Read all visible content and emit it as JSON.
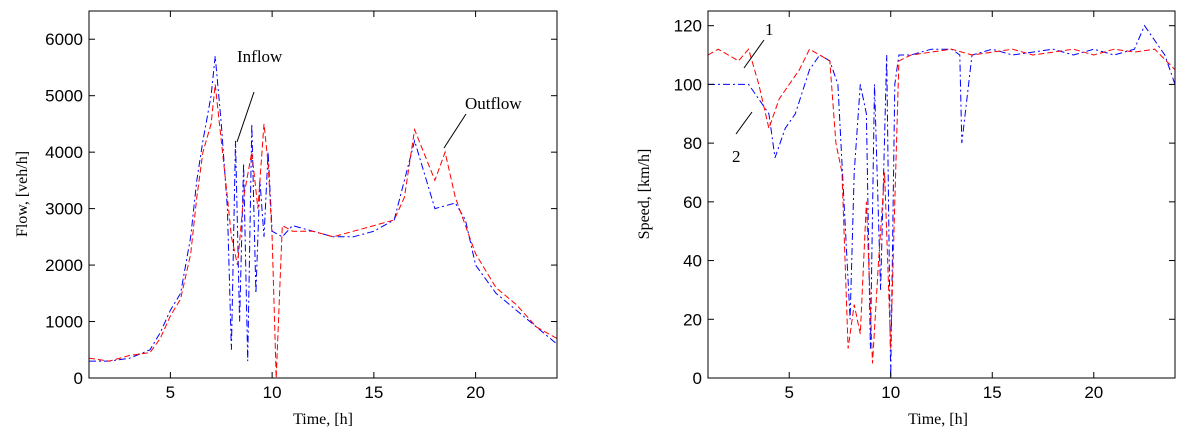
{
  "chart_data": [
    {
      "type": "line",
      "xlabel": "Time, [h]",
      "ylabel": "Flow, [veh/h]",
      "xlim": [
        1,
        24
      ],
      "ylim": [
        0,
        6500
      ],
      "xticks": [
        5,
        10,
        15,
        20
      ],
      "yticks": [
        0,
        1000,
        2000,
        3000,
        4000,
        5000,
        6000
      ],
      "grid": false,
      "annotations": [
        "Inflow",
        "Outflow"
      ],
      "series": [
        {
          "color": "#0000ff",
          "style": "dash-dot",
          "x": [
            1,
            2,
            3,
            4,
            4.5,
            5,
            5.5,
            6,
            6.3,
            6.6,
            7,
            7.2,
            7.5,
            7.8,
            8,
            8.2,
            8.4,
            8.6,
            8.8,
            9,
            9.2,
            9.4,
            9.6,
            9.8,
            10,
            10.5,
            11,
            12,
            13,
            14,
            15,
            16,
            16.5,
            17,
            18,
            19,
            19.5,
            20,
            21,
            22,
            23,
            24
          ],
          "values": [
            300,
            300,
            350,
            500,
            800,
            1200,
            1500,
            2500,
            3500,
            4200,
            5000,
            5700,
            4500,
            3000,
            500,
            4200,
            1000,
            3800,
            300,
            4500,
            1500,
            3500,
            2500,
            4000,
            2600,
            2500,
            2700,
            2600,
            2500,
            2500,
            2600,
            2800,
            3500,
            4200,
            3000,
            3100,
            2800,
            2000,
            1500,
            1200,
            900,
            600
          ]
        },
        {
          "color": "#ff0000",
          "style": "dashed",
          "x": [
            1,
            2,
            3,
            4,
            4.5,
            5,
            5.5,
            6,
            6.3,
            6.6,
            7,
            7.2,
            7.5,
            7.8,
            8,
            8.3,
            8.6,
            9,
            9.3,
            9.6,
            9.8,
            10,
            10.2,
            10.5,
            11,
            12,
            13,
            14,
            15,
            16,
            16.5,
            17,
            18,
            18.5,
            19,
            20,
            21,
            22,
            23,
            24
          ],
          "values": [
            350,
            300,
            400,
            450,
            700,
            1100,
            1400,
            2200,
            3200,
            4000,
            4500,
            5200,
            4200,
            3200,
            2500,
            2000,
            3200,
            4000,
            3000,
            4500,
            3800,
            2500,
            0,
            2700,
            2600,
            2600,
            2500,
            2600,
            2700,
            2800,
            3200,
            4400,
            3500,
            4000,
            3200,
            2200,
            1600,
            1300,
            900,
            700
          ]
        }
      ]
    },
    {
      "type": "line",
      "xlabel": "Time, [h]",
      "ylabel": "Speed, [km/h]",
      "xlim": [
        1,
        24
      ],
      "ylim": [
        0,
        125
      ],
      "xticks": [
        5,
        10,
        15,
        20
      ],
      "yticks": [
        0,
        20,
        40,
        60,
        80,
        100,
        120
      ],
      "grid": false,
      "annotations": [
        "1",
        "2"
      ],
      "series": [
        {
          "color": "#0000ff",
          "style": "dash-dot",
          "x": [
            1,
            2,
            3,
            3.5,
            4,
            4.3,
            4.8,
            5.3,
            6,
            6.5,
            7,
            7.4,
            7.7,
            8,
            8.2,
            8.5,
            8.8,
            9,
            9.2,
            9.5,
            9.8,
            10,
            10.2,
            10.4,
            11,
            12,
            13,
            13.4,
            13.5,
            14,
            15,
            16,
            17,
            18,
            19,
            20,
            21,
            22,
            22.5,
            23,
            23.5,
            24
          ],
          "values": [
            100,
            100,
            100,
            95,
            90,
            75,
            85,
            90,
            105,
            110,
            108,
            100,
            60,
            20,
            70,
            100,
            90,
            10,
            100,
            30,
            110,
            0,
            100,
            110,
            110,
            112,
            112,
            110,
            80,
            110,
            112,
            110,
            111,
            112,
            110,
            112,
            110,
            112,
            120,
            115,
            110,
            100
          ]
        },
        {
          "color": "#ff0000",
          "style": "dashed",
          "x": [
            1,
            1.5,
            2,
            2.5,
            3,
            3.5,
            4,
            4.5,
            5,
            5.5,
            6,
            6.5,
            7,
            7.3,
            7.6,
            7.9,
            8.2,
            8.5,
            8.8,
            9.1,
            9.4,
            9.7,
            10,
            10.2,
            10.4,
            11,
            12,
            13,
            14,
            15,
            16,
            17,
            18,
            19,
            20,
            21,
            22,
            23,
            24
          ],
          "values": [
            110,
            112,
            110,
            108,
            112,
            100,
            85,
            95,
            100,
            105,
            112,
            110,
            108,
            80,
            70,
            10,
            25,
            15,
            60,
            5,
            40,
            70,
            10,
            60,
            108,
            110,
            111,
            112,
            110,
            111,
            112,
            110,
            111,
            112,
            110,
            112,
            111,
            112,
            105
          ]
        }
      ]
    }
  ]
}
